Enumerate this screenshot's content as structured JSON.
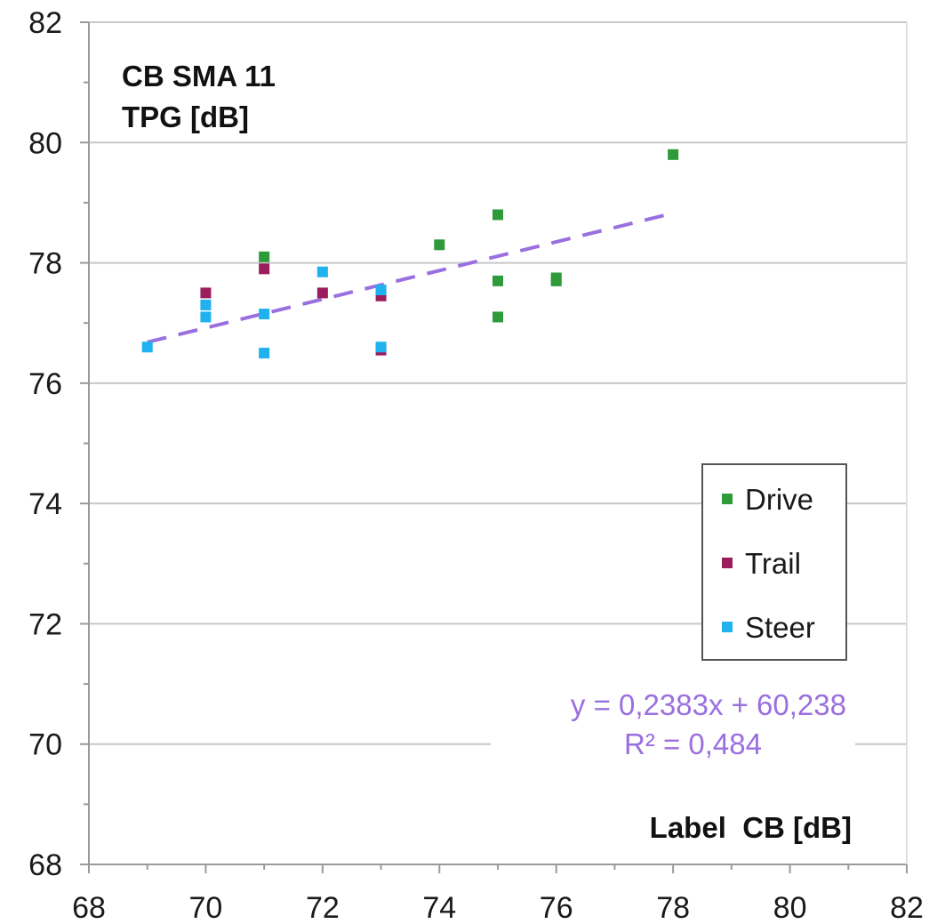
{
  "chart_data": {
    "type": "scatter",
    "title_lines": [
      "CB SMA 11",
      "TPG [dB]"
    ],
    "xlabel": "Label  CB [dB]",
    "ylabel": "",
    "xlim": [
      68,
      82
    ],
    "ylim": [
      68,
      82
    ],
    "x_ticks": [
      68,
      70,
      72,
      74,
      76,
      78,
      80,
      82
    ],
    "y_ticks": [
      68,
      70,
      72,
      74,
      76,
      78,
      80,
      82
    ],
    "grid": "horizontal major lines",
    "legend_position": "right",
    "series": [
      {
        "name": "Drive",
        "color": "#2e9a3a",
        "marker": "square",
        "points": [
          {
            "x": 71,
            "y": 78.1
          },
          {
            "x": 74,
            "y": 78.3
          },
          {
            "x": 75,
            "y": 78.8
          },
          {
            "x": 75,
            "y": 77.7
          },
          {
            "x": 75,
            "y": 77.1
          },
          {
            "x": 76,
            "y": 77.75
          },
          {
            "x": 76,
            "y": 77.7
          },
          {
            "x": 78,
            "y": 79.8
          }
        ]
      },
      {
        "name": "Trail",
        "color": "#9b1d5b",
        "marker": "square",
        "points": [
          {
            "x": 70,
            "y": 77.5
          },
          {
            "x": 71,
            "y": 77.9
          },
          {
            "x": 72,
            "y": 77.5
          },
          {
            "x": 73,
            "y": 77.45
          },
          {
            "x": 73,
            "y": 76.55
          }
        ]
      },
      {
        "name": "Steer",
        "color": "#1fb2ef",
        "marker": "square",
        "points": [
          {
            "x": 69,
            "y": 76.6
          },
          {
            "x": 70,
            "y": 77.3
          },
          {
            "x": 70,
            "y": 77.1
          },
          {
            "x": 71,
            "y": 77.15
          },
          {
            "x": 71,
            "y": 76.5
          },
          {
            "x": 72,
            "y": 77.85
          },
          {
            "x": 73,
            "y": 77.55
          },
          {
            "x": 73,
            "y": 76.6
          }
        ]
      }
    ],
    "trendline": {
      "color": "#9a6fe0",
      "slope": 0.2383,
      "intercept": 60.238,
      "x_range": [
        69,
        78
      ],
      "equation_text": "y = 0,2383x + 60,238",
      "r2_text": "R² = 0,484"
    }
  }
}
